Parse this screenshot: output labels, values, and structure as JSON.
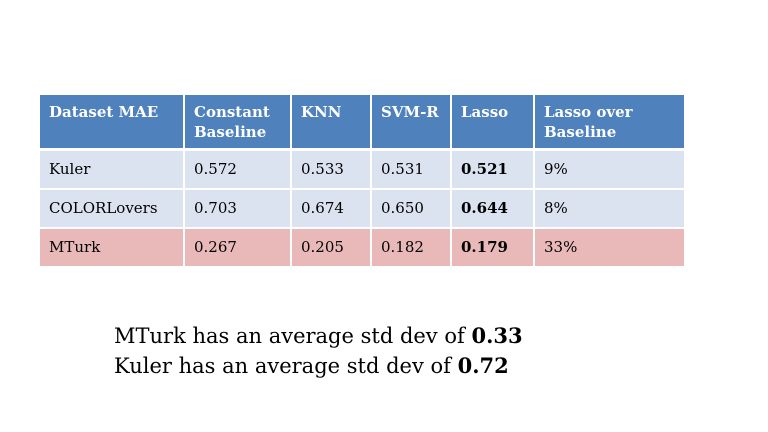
{
  "table": {
    "headers": [
      "Dataset MAE",
      "Constant Baseline",
      "KNN",
      "SVM-R",
      "Lasso",
      "Lasso over Baseline"
    ],
    "rows": [
      {
        "cells": [
          "Kuler",
          "0.572",
          "0.533",
          "0.531",
          "0.521",
          "9%"
        ]
      },
      {
        "cells": [
          "COLORLovers",
          "0.703",
          "0.674",
          "0.650",
          "0.644",
          "8%"
        ]
      },
      {
        "cells": [
          "MTurk",
          "0.267",
          "0.205",
          "0.182",
          "0.179",
          "33%"
        ]
      }
    ]
  },
  "notes": [
    {
      "text": "MTurk has an average std dev of ",
      "value": "0.33"
    },
    {
      "text": "Kuler has an average std dev of ",
      "value": "0.72"
    }
  ]
}
